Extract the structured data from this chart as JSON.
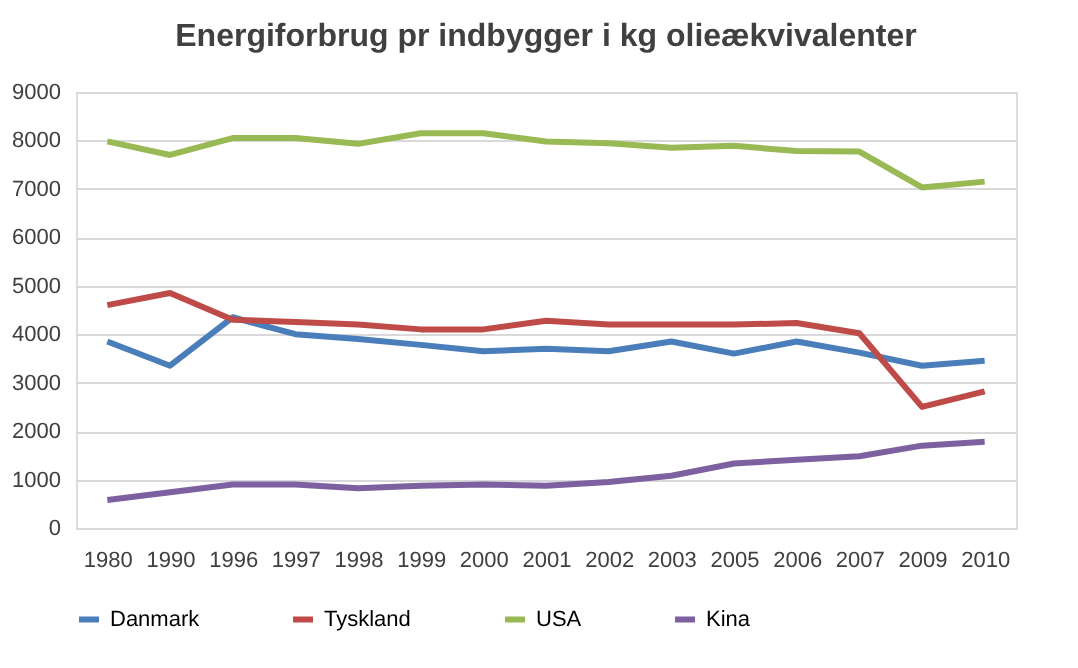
{
  "chart_data": {
    "type": "line",
    "title": "Energiforbrug pr indbygger i kg olieækvivalenter",
    "categories": [
      "1980",
      "1990",
      "1996",
      "1997",
      "1998",
      "1999",
      "2000",
      "2001",
      "2002",
      "2003",
      "2005",
      "2006",
      "2007",
      "2009",
      "2010"
    ],
    "series": [
      {
        "name": "Danmark",
        "color": "#4a7ebb",
        "values": [
          3850,
          3350,
          4350,
          4000,
          3900,
          3780,
          3650,
          3700,
          3650,
          3850,
          3600,
          3850,
          3620,
          3350,
          3450
        ]
      },
      {
        "name": "Tyskland",
        "color": "#be4b48",
        "values": [
          4600,
          4850,
          4300,
          4250,
          4200,
          4100,
          4100,
          4280,
          4200,
          4200,
          4200,
          4230,
          4020,
          2500,
          2820
        ]
      },
      {
        "name": "USA",
        "color": "#98b954",
        "values": [
          7980,
          7700,
          8050,
          8050,
          7930,
          8150,
          8150,
          7980,
          7940,
          7850,
          7890,
          7780,
          7770,
          7030,
          7150
        ]
      },
      {
        "name": "Kina",
        "color": "#7d60a0",
        "values": [
          580,
          740,
          900,
          900,
          820,
          870,
          900,
          870,
          950,
          1080,
          1330,
          1410,
          1480,
          1700,
          1780
        ]
      }
    ],
    "ylim": [
      0,
      9000
    ],
    "yticks": [
      0,
      1000,
      2000,
      3000,
      4000,
      5000,
      6000,
      7000,
      8000,
      9000
    ],
    "grid": "y",
    "legend": "bottom",
    "marker": "none",
    "line_style": "solid"
  }
}
